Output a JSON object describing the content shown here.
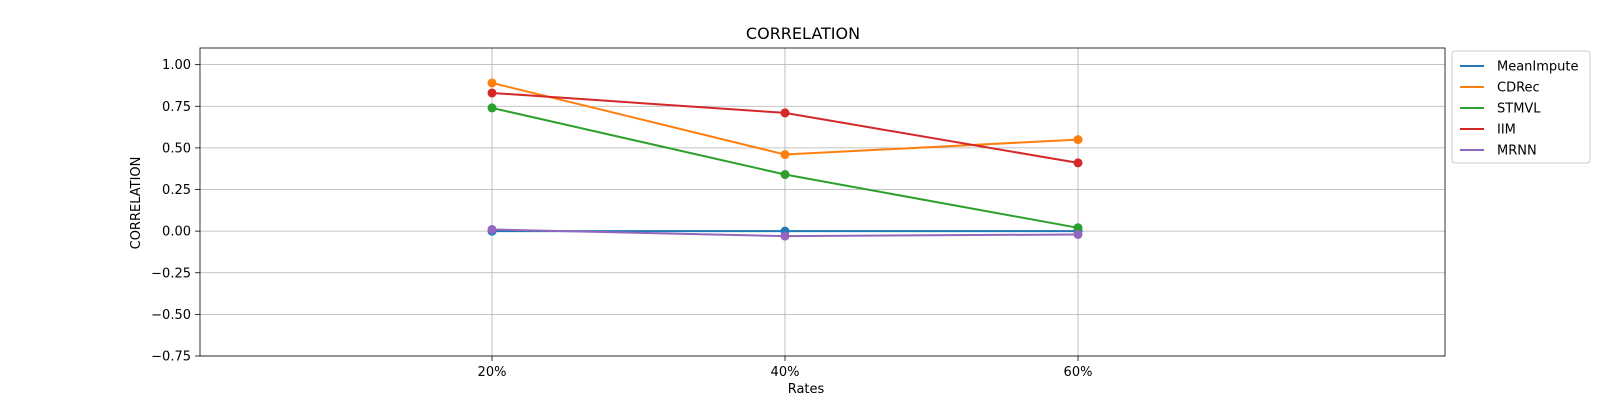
{
  "chart_data": {
    "type": "line",
    "title": "CORRELATION",
    "xlabel": "Rates",
    "ylabel": "CORRELATION",
    "categories": [
      "20%",
      "40%",
      "60%"
    ],
    "ylim": [
      -0.75,
      1.1
    ],
    "yticks": [
      1.0,
      0.75,
      0.5,
      0.25,
      0.0,
      -0.25,
      -0.5,
      -0.75
    ],
    "ytick_labels": [
      "1.00",
      "0.75",
      "0.50",
      "0.25",
      "0.00",
      "−0.25",
      "−0.50",
      "−0.75"
    ],
    "grid": true,
    "legend_position": "outside-top-right",
    "series": [
      {
        "name": "MeanImpute",
        "color": "#1f77b4",
        "values": [
          0.0,
          0.0,
          0.0
        ]
      },
      {
        "name": "CDRec",
        "color": "#ff7f0e",
        "values": [
          0.89,
          0.46,
          0.55
        ]
      },
      {
        "name": "STMVL",
        "color": "#2ca02c",
        "values": [
          0.74,
          0.34,
          0.02
        ]
      },
      {
        "name": "IIM",
        "color": "#d62728",
        "values": [
          0.83,
          0.71,
          0.41
        ]
      },
      {
        "name": "MRNN",
        "color": "#9467bd",
        "values": [
          0.01,
          -0.03,
          -0.02
        ]
      }
    ]
  }
}
